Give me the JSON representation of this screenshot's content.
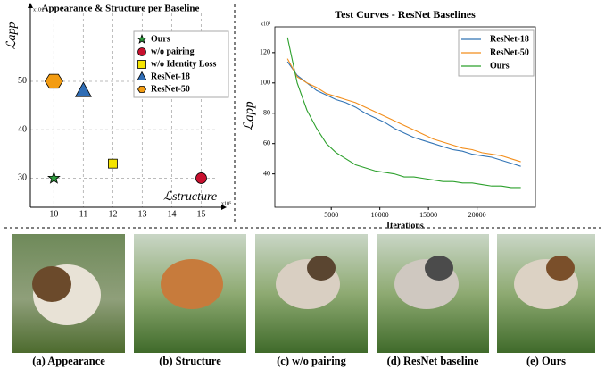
{
  "chart_data": [
    {
      "type": "scatter",
      "title": "Appearance & Structure per Baseline",
      "xlabel": "ℒstructure",
      "ylabel": "ℒapp",
      "x_multiplier": "x10⁵",
      "y_multiplier": "x10⁴",
      "xlim": [
        9.2,
        15.5
      ],
      "ylim": [
        24,
        64
      ],
      "xticks": [
        10,
        11,
        12,
        13,
        14,
        15
      ],
      "yticks": [
        30,
        40,
        50
      ],
      "grid": true,
      "legend": "upper right",
      "series": [
        {
          "name": "Ours",
          "color": "#2e9e3e",
          "marker": "star",
          "x": [
            10
          ],
          "values": [
            30
          ]
        },
        {
          "name": "w/o pairing",
          "color": "#c8102e",
          "marker": "circle",
          "x": [
            15
          ],
          "values": [
            30
          ]
        },
        {
          "name": "w/o Identity Loss",
          "color": "#f5e400",
          "marker": "square",
          "x": [
            12
          ],
          "values": [
            33
          ]
        },
        {
          "name": "ResNet-18",
          "color": "#2f6db5",
          "marker": "triangle",
          "x": [
            11
          ],
          "values": [
            48
          ]
        },
        {
          "name": "ResNet-50",
          "color": "#f39c12",
          "marker": "hexagon",
          "x": [
            10
          ],
          "values": [
            50
          ]
        }
      ]
    },
    {
      "type": "line",
      "title": "Test Curves - ResNet Baselines",
      "xlabel": "Iterations",
      "ylabel": "ℒapp",
      "y_multiplier": "x10⁴",
      "xlim": [
        -800,
        26000
      ],
      "ylim": [
        18,
        137
      ],
      "xticks": [
        5000,
        10000,
        15000,
        20000
      ],
      "yticks": [
        40,
        60,
        80,
        100,
        120
      ],
      "grid": false,
      "legend": "upper right",
      "x": [
        500,
        1500,
        2500,
        3500,
        4500,
        5500,
        6500,
        7500,
        8500,
        9500,
        10500,
        11500,
        12500,
        13500,
        14500,
        15500,
        16500,
        17500,
        18500,
        19500,
        20500,
        21500,
        22500,
        23500,
        24500
      ],
      "series": [
        {
          "name": "ResNet-18",
          "color": "#3274b5",
          "values": [
            114,
            105,
            100,
            95,
            92,
            89,
            87,
            84,
            80,
            77,
            74,
            70,
            67,
            64,
            62,
            60,
            58,
            56,
            55,
            53,
            52,
            51,
            49,
            47,
            45
          ]
        },
        {
          "name": "ResNet-50",
          "color": "#f28e1c",
          "values": [
            116,
            104,
            100,
            97,
            93,
            91,
            89,
            87,
            84,
            81,
            78,
            75,
            72,
            69,
            66,
            63,
            61,
            59,
            57,
            56,
            54,
            53,
            52,
            50,
            48
          ]
        },
        {
          "name": "Ours",
          "color": "#2ca02c",
          "values": [
            130,
            100,
            82,
            70,
            60,
            54,
            50,
            46,
            44,
            42,
            41,
            40,
            38,
            38,
            37,
            36,
            35,
            35,
            34,
            34,
            33,
            32,
            32,
            31,
            31
          ]
        }
      ]
    }
  ],
  "figure": {
    "panels": [
      "(a) Appearance",
      "(b) Structure",
      "(c) w/o pairing",
      "(d) ResNet baseline",
      "(e) Ours"
    ]
  }
}
